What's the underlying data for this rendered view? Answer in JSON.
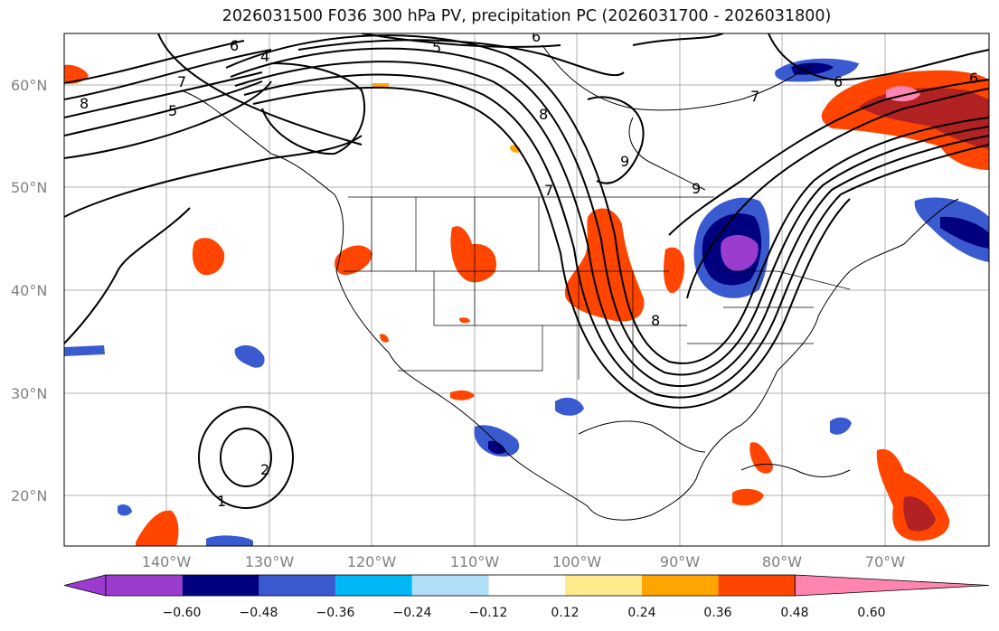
{
  "title": "2026031500 F036 300 hPa PV, precipitation PC (2026031700 - 2026031800)",
  "lat_labels": [
    "60°N",
    "50°N",
    "40°N",
    "30°N",
    "20°N"
  ],
  "lon_labels": [
    "140°W",
    "130°W",
    "120°W",
    "110°W",
    "100°W",
    "90°W",
    "80°W",
    "70°W"
  ],
  "contour_labels": [
    "6",
    "4",
    "5",
    "6",
    "8",
    "7",
    "5",
    "7",
    "6",
    "6",
    "7",
    "8",
    "9",
    "9",
    "8",
    "1",
    "2"
  ],
  "colorbar": {
    "tick_labels": [
      "−0.60",
      "−0.48",
      "−0.36",
      "−0.24",
      "−0.12",
      "0.12",
      "0.24",
      "0.36",
      "0.48",
      "0.60"
    ],
    "colors": [
      "#9b3ccf",
      "#00007f",
      "#3a5bd0",
      "#00b7f5",
      "#aedff7",
      "#ffffff",
      "#ffea8c",
      "#ffa500",
      "#ff4500",
      "#b22222",
      "#ff85b0"
    ]
  }
}
